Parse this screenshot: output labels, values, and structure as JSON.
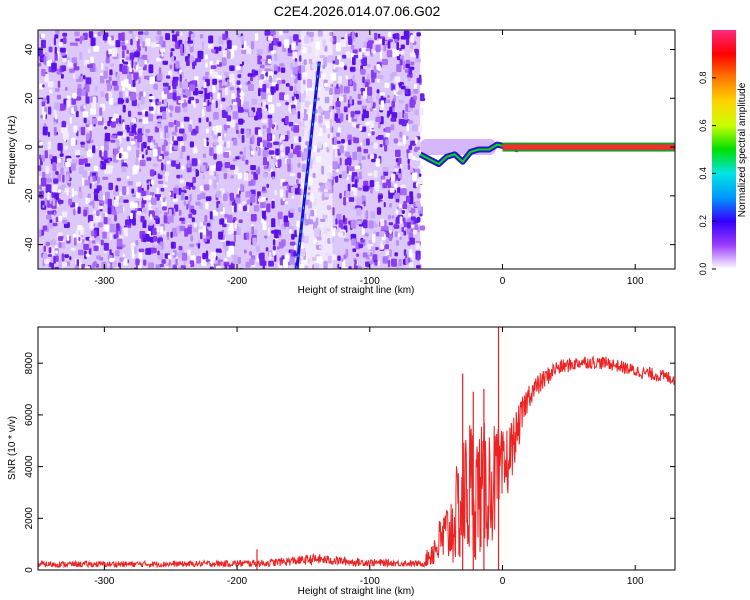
{
  "figure_title": "C2E4.2026.014.07.06.G02",
  "chart_data": [
    {
      "type": "heatmap",
      "title": "C2E4.2026.014.07.06.G02",
      "xlabel": "Height of straight line (km)",
      "ylabel": "Frequency (Hz)",
      "xlim": [
        -350,
        130
      ],
      "ylim": [
        -50,
        48
      ],
      "xticks": [
        -300,
        -200,
        -100,
        0,
        100
      ],
      "xtick_labels": [
        "-300",
        "-200",
        "-100",
        "0",
        "100"
      ],
      "yticks": [
        -40,
        -20,
        0,
        20,
        40
      ],
      "ytick_labels": [
        "-40",
        "-20",
        "0",
        "20",
        "40"
      ],
      "colorbar": {
        "label": "Normalized spectral amplitude",
        "range": [
          0,
          1
        ],
        "ticks": [
          0.0,
          0.2,
          0.4,
          0.6,
          0.8
        ],
        "tick_labels": [
          "0.0",
          "0.2",
          "0.4",
          "0.6",
          "0.8"
        ],
        "colormap": [
          "#ffffff",
          "#9a3cff",
          "#3300ff",
          "#0099ff",
          "#00e5e5",
          "#00e000",
          "#c8ff00",
          "#ffd400",
          "#ff7700",
          "#ff0000",
          "#ff2a80"
        ]
      },
      "regions": [
        {
          "name": "noise",
          "x_range": [
            -350,
            -62
          ],
          "amplitude": 0.1
        },
        {
          "name": "no-data",
          "x_range": [
            -62,
            130
          ],
          "amplitude": 0
        }
      ],
      "features": [
        {
          "name": "diagonal-streak",
          "x_start": -155,
          "y_start": -50,
          "x_end": -138,
          "y_end": 35
        },
        {
          "name": "carrier-line",
          "x_range": [
            -60,
            130
          ],
          "y": 0
        }
      ]
    },
    {
      "type": "line",
      "xlabel": "Height of straight line (km)",
      "ylabel": "SNR (10 * v/v)",
      "xlim": [
        -350,
        130
      ],
      "ylim": [
        0,
        9400
      ],
      "xticks": [
        -300,
        -200,
        -100,
        0,
        100
      ],
      "xtick_labels": [
        "-300",
        "-200",
        "-100",
        "0",
        "100"
      ],
      "yticks": [
        0,
        2000,
        4000,
        6000,
        8000
      ],
      "ytick_labels": [
        "0",
        "2000",
        "4000",
        "6000",
        "8000"
      ],
      "line_color": "#ee2222",
      "envelope": {
        "x": [
          -350,
          -250,
          -180,
          -140,
          -110,
          -60,
          -50,
          -40,
          -30,
          -25,
          -20,
          -10,
          -5,
          0,
          10,
          20,
          40,
          60,
          80,
          100,
          130
        ],
        "mean": [
          220,
          230,
          260,
          420,
          300,
          240,
          900,
          1500,
          2600,
          3200,
          3000,
          3300,
          3500,
          3600,
          5200,
          6800,
          7800,
          8050,
          8000,
          7700,
          7400
        ],
        "noise": [
          120,
          110,
          140,
          200,
          150,
          110,
          800,
          1400,
          2400,
          3000,
          2600,
          2500,
          2200,
          1800,
          900,
          500,
          300,
          250,
          250,
          250,
          250
        ]
      },
      "spikes": [
        {
          "x": -185,
          "y": 800
        },
        {
          "x": -30,
          "y": 7600
        },
        {
          "x": -22,
          "y": 6900
        },
        {
          "x": -14,
          "y": 7000
        },
        {
          "x": -3,
          "y": 9400
        }
      ]
    }
  ]
}
